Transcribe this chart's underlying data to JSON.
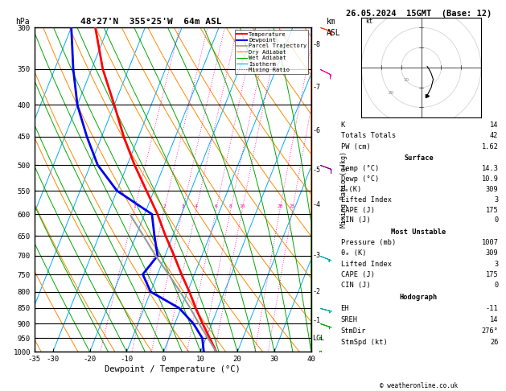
{
  "title_center": "48°27'N  355°25'W  64m ASL",
  "date_title": "26.05.2024  15GMT  (Base: 12)",
  "xlabel": "Dewpoint / Temperature (°C)",
  "ylabel_right": "Mixing Ratio (g/kg)",
  "pressure_levels": [
    300,
    350,
    400,
    450,
    500,
    550,
    600,
    650,
    700,
    750,
    800,
    850,
    900,
    950,
    1000
  ],
  "temp_data": {
    "pressure": [
      1000,
      950,
      900,
      850,
      800,
      750,
      700,
      650,
      600,
      550,
      500,
      450,
      400,
      350,
      300
    ],
    "temperature": [
      14.3,
      11.0,
      7.5,
      4.0,
      0.5,
      -3.5,
      -7.5,
      -12.0,
      -16.5,
      -22.0,
      -28.0,
      -34.0,
      -40.0,
      -47.0,
      -53.5
    ]
  },
  "dewp_data": {
    "pressure": [
      1000,
      950,
      900,
      850,
      800,
      750,
      700,
      650,
      600,
      550,
      500,
      450,
      400,
      350,
      300
    ],
    "dewpoint": [
      10.9,
      9.0,
      5.0,
      -0.5,
      -10.0,
      -14.0,
      -12.0,
      -15.0,
      -18.0,
      -30.0,
      -38.0,
      -44.0,
      -50.0,
      -55.0,
      -60.0
    ]
  },
  "parcel_data": {
    "pressure": [
      1000,
      950,
      900,
      850,
      800,
      750,
      700,
      650,
      600
    ],
    "temperature": [
      14.3,
      10.5,
      6.5,
      2.5,
      -2.0,
      -7.0,
      -12.5,
      -18.0,
      -24.0
    ]
  },
  "mixing_ratio_vals": [
    1,
    2,
    3,
    4,
    6,
    8,
    10,
    20,
    25
  ],
  "km_labels": [
    8,
    7,
    6,
    5,
    4,
    3,
    2,
    1
  ],
  "km_pressures": [
    320,
    375,
    440,
    510,
    580,
    700,
    800,
    890
  ],
  "lcl_pressure": 952,
  "skew_factor": 35,
  "xmin": -35,
  "xmax": 40,
  "pmin": 300,
  "pmax": 1000,
  "colors": {
    "temperature": "#ff0000",
    "dewpoint": "#0000ee",
    "parcel": "#999999",
    "dry_adiabat": "#ff8800",
    "wet_adiabat": "#00aa00",
    "isotherm": "#00aaff",
    "mixing_ratio": "#ff00aa",
    "grid": "#000000",
    "background": "#ffffff"
  },
  "wind_barbs": [
    {
      "pressure": 300,
      "color": "#ff6600",
      "type": "barb_red"
    },
    {
      "pressure": 350,
      "color": "#ff00aa",
      "type": "barb_pink"
    },
    {
      "pressure": 500,
      "color": "#880088",
      "type": "barb_purple"
    },
    {
      "pressure": 700,
      "color": "#00aaaa",
      "type": "barb_cyan"
    },
    {
      "pressure": 850,
      "color": "#00aaaa",
      "type": "barb_cyan2"
    },
    {
      "pressure": 900,
      "color": "#00aa00",
      "type": "barb_green"
    },
    {
      "pressure": 950,
      "color": "#00aa00",
      "type": "barb_green2"
    },
    {
      "pressure": 1000,
      "color": "#00aa00",
      "type": "barb_green3"
    }
  ],
  "info_K": 14,
  "info_TT": 42,
  "info_PW": "1.62",
  "sfc_temp": "14.3",
  "sfc_dewp": "10.9",
  "sfc_theta_e": 309,
  "sfc_LI": 3,
  "sfc_CAPE": 175,
  "sfc_CIN": 0,
  "mu_pressure": 1007,
  "mu_theta_e": 309,
  "mu_LI": 3,
  "mu_CAPE": 175,
  "mu_CIN": 0,
  "hodo_EH": -11,
  "hodo_SREH": 14,
  "hodo_StmDir": "276°",
  "hodo_StmSpd": 26,
  "copyright": "© weatheronline.co.uk"
}
